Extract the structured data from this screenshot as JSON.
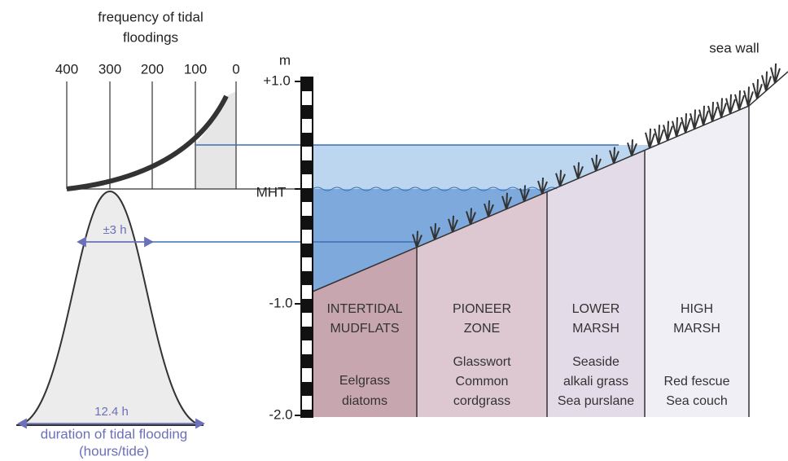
{
  "frequency_panel": {
    "title_lines": [
      "frequency of tidal",
      "floodings"
    ],
    "axis_labels": [
      "400",
      "300",
      "200",
      "100",
      "0"
    ]
  },
  "duration_panel": {
    "inner_label": "±3 h",
    "base_label": "12.4 h",
    "title": "duration of tidal flooding",
    "subtitle": "(hours/tide)"
  },
  "scale": {
    "unit": "m",
    "labels": [
      "+1.0",
      "MHT",
      "-1.0",
      "-2.0"
    ]
  },
  "sea_wall": "sea wall",
  "zones": [
    {
      "name_lines": [
        "INTERTIDAL",
        "MUDFLATS"
      ],
      "species_lines": [
        "Eelgrass",
        "diatoms"
      ]
    },
    {
      "name_lines": [
        "PIONEER",
        "ZONE"
      ],
      "species_lines": [
        "Glasswort",
        "Common",
        "cordgrass"
      ]
    },
    {
      "name_lines": [
        "LOWER",
        "MARSH"
      ],
      "species_lines": [
        "Seaside",
        "alkali grass",
        "Sea purslane"
      ]
    },
    {
      "name_lines": [
        "HIGH",
        "MARSH"
      ],
      "species_lines": [
        "Red fescue",
        "Sea couch"
      ]
    }
  ]
}
